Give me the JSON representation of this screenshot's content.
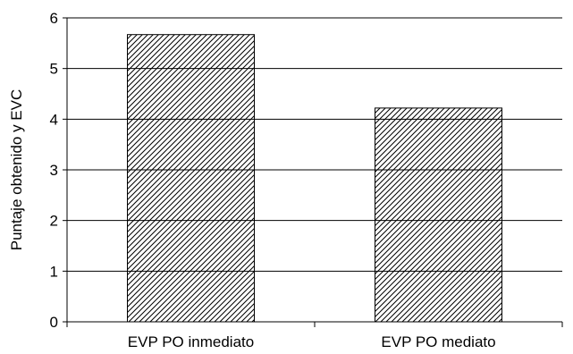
{
  "chart_data": {
    "type": "bar",
    "categories": [
      "EVP PO inmediato",
      "EVP PO mediato"
    ],
    "values": [
      5.67,
      4.22
    ],
    "title": "",
    "xlabel": "",
    "ylabel": "Puntaje obtenido y EVC",
    "ylim": [
      0,
      6
    ],
    "yticks": [
      0,
      1,
      2,
      3,
      4,
      5,
      6
    ],
    "grid": true,
    "legend": "none",
    "bar_fill": "diagonal hatch",
    "colors": {
      "bar_stroke": "#000000",
      "hatch": "#000000",
      "grid": "#000000",
      "background": "#ffffff"
    }
  }
}
